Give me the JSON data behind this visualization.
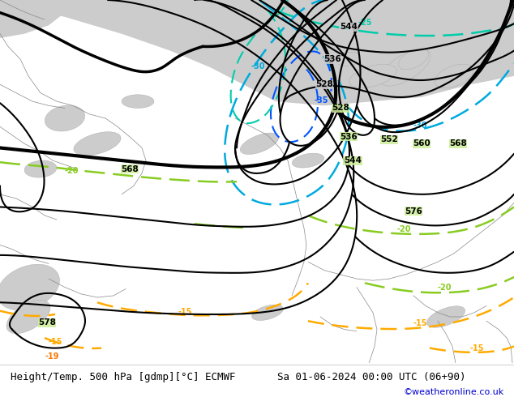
{
  "title_left": "Height/Temp. 500 hPa [gdmp][°C] ECMWF",
  "title_right": "Sa 01-06-2024 00:00 UTC (06+90)",
  "credit": "©weatheronline.co.uk",
  "land_color": "#ccee99",
  "gray_color": "#cccccc",
  "credit_color": "#0000cc",
  "bottom_bg": "#ffffff"
}
